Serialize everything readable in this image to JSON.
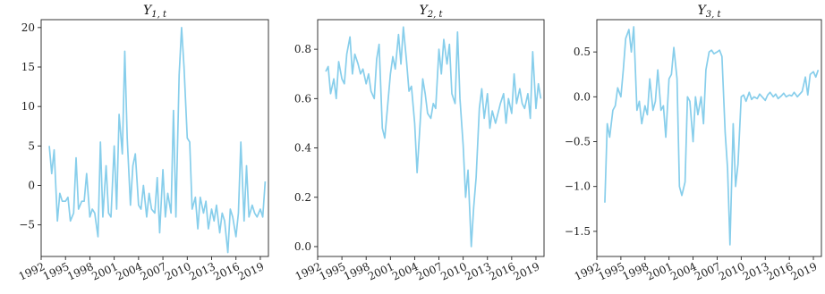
{
  "chart_data": [
    {
      "type": "line",
      "title": "Y",
      "title_sub": "1, t",
      "xticks": [
        "1992",
        "1995",
        "1998",
        "2001",
        "2004",
        "2007",
        "2010",
        "2013",
        "2016",
        "2019"
      ],
      "xrange": [
        1992,
        2020
      ],
      "yticks": [
        -5,
        0,
        5,
        10,
        15,
        20
      ],
      "ylim": [
        -9,
        21
      ],
      "color": "#87ceeb",
      "series": [
        {
          "x": [
            1993.0,
            1993.3,
            1993.6,
            1994.0,
            1994.3,
            1994.6,
            1995.0,
            1995.3,
            1995.6,
            1996.0,
            1996.3,
            1996.6,
            1997.0,
            1997.3,
            1997.6,
            1998.0,
            1998.3,
            1998.6,
            1999.0,
            1999.3,
            1999.6,
            2000.0,
            2000.3,
            2000.6,
            2001.0,
            2001.3,
            2001.6,
            2002.0,
            2002.3,
            2002.6,
            2003.0,
            2003.3,
            2003.6,
            2004.0,
            2004.3,
            2004.6,
            2005.0,
            2005.3,
            2005.6,
            2006.0,
            2006.3,
            2006.6,
            2007.0,
            2007.3,
            2007.6,
            2008.0,
            2008.3,
            2008.6,
            2009.0,
            2009.3,
            2009.6,
            2010.0,
            2010.3,
            2010.6,
            2011.0,
            2011.3,
            2011.6,
            2012.0,
            2012.3,
            2012.6,
            2013.0,
            2013.3,
            2013.6,
            2014.0,
            2014.3,
            2014.6,
            2015.0,
            2015.3,
            2015.6,
            2016.0,
            2016.3,
            2016.6,
            2017.0,
            2017.3,
            2017.6,
            2018.0,
            2018.3,
            2018.6,
            2019.0,
            2019.3,
            2019.6
          ],
          "y": [
            5,
            1.5,
            4.5,
            -4.5,
            -1.0,
            -2.0,
            -2.0,
            -1.5,
            -4.5,
            -3.5,
            3.5,
            -3.0,
            -2.0,
            -2.0,
            1.5,
            -4.0,
            -3.0,
            -3.5,
            -6.5,
            5.5,
            -4.0,
            2.5,
            -3.5,
            -4.0,
            5.0,
            -3.0,
            9.0,
            4.0,
            17.0,
            6.0,
            -2.5,
            2.5,
            4.0,
            -2.5,
            -3.0,
            0.0,
            -4.0,
            -1.0,
            -3.0,
            -3.5,
            1.0,
            -6.0,
            2.0,
            -4.0,
            -1.0,
            -3.5,
            9.5,
            -4.0,
            14.0,
            20.0,
            15.0,
            6.0,
            5.5,
            -3.0,
            -1.5,
            -5.5,
            -1.5,
            -3.5,
            -2.0,
            -5.5,
            -3.0,
            -4.5,
            -2.5,
            -6.0,
            -3.5,
            -4.5,
            -8.5,
            -3.0,
            -4.0,
            -6.5,
            -3.5,
            5.5,
            -4.5,
            2.5,
            -4.0,
            -2.5,
            -3.5,
            -4.0,
            -3.0,
            -4.0,
            0.5
          ]
        }
      ]
    },
    {
      "type": "line",
      "title": "Y",
      "title_sub": "2, t",
      "xticks": [
        "1992",
        "1995",
        "1998",
        "2001",
        "2004",
        "2007",
        "2010",
        "2013",
        "2016",
        "2019"
      ],
      "xrange": [
        1992,
        2020
      ],
      "yticks": [
        0.0,
        0.2,
        0.4,
        0.6,
        0.8
      ],
      "ylim": [
        -0.04,
        0.92
      ],
      "color": "#87ceeb",
      "series": [
        {
          "x": [
            1993.0,
            1993.3,
            1993.6,
            1994.0,
            1994.3,
            1994.6,
            1995.0,
            1995.3,
            1995.6,
            1996.0,
            1996.3,
            1996.6,
            1997.0,
            1997.3,
            1997.6,
            1998.0,
            1998.3,
            1998.6,
            1999.0,
            1999.3,
            1999.6,
            2000.0,
            2000.3,
            2000.6,
            2001.0,
            2001.3,
            2001.6,
            2002.0,
            2002.3,
            2002.6,
            2003.0,
            2003.3,
            2003.6,
            2004.0,
            2004.3,
            2004.6,
            2005.0,
            2005.3,
            2005.6,
            2006.0,
            2006.3,
            2006.6,
            2007.0,
            2007.3,
            2007.6,
            2008.0,
            2008.3,
            2008.6,
            2009.0,
            2009.3,
            2009.6,
            2010.0,
            2010.3,
            2010.6,
            2011.0,
            2011.3,
            2011.6,
            2012.0,
            2012.3,
            2012.6,
            2013.0,
            2013.3,
            2013.6,
            2014.0,
            2014.3,
            2014.6,
            2015.0,
            2015.3,
            2015.6,
            2016.0,
            2016.3,
            2016.6,
            2017.0,
            2017.3,
            2017.6,
            2018.0,
            2018.3,
            2018.6,
            2019.0,
            2019.3,
            2019.6
          ],
          "y": [
            0.71,
            0.73,
            0.62,
            0.68,
            0.6,
            0.75,
            0.68,
            0.66,
            0.78,
            0.85,
            0.7,
            0.78,
            0.74,
            0.7,
            0.72,
            0.66,
            0.7,
            0.63,
            0.6,
            0.76,
            0.82,
            0.48,
            0.44,
            0.55,
            0.7,
            0.77,
            0.72,
            0.86,
            0.74,
            0.89,
            0.75,
            0.63,
            0.65,
            0.5,
            0.3,
            0.46,
            0.68,
            0.62,
            0.54,
            0.52,
            0.58,
            0.56,
            0.8,
            0.7,
            0.84,
            0.74,
            0.82,
            0.62,
            0.58,
            0.87,
            0.6,
            0.41,
            0.2,
            0.31,
            0.0,
            0.16,
            0.28,
            0.56,
            0.64,
            0.52,
            0.62,
            0.48,
            0.55,
            0.5,
            0.54,
            0.58,
            0.62,
            0.5,
            0.6,
            0.54,
            0.7,
            0.58,
            0.64,
            0.58,
            0.56,
            0.62,
            0.52,
            0.79,
            0.56,
            0.66,
            0.6
          ]
        }
      ]
    },
    {
      "type": "line",
      "title": "Y",
      "title_sub": "3, t",
      "xticks": [
        "1992",
        "1995",
        "1998",
        "2001",
        "2004",
        "2007",
        "2010",
        "2013",
        "2016",
        "2019"
      ],
      "xrange": [
        1992,
        2020
      ],
      "yticks": [
        -1.5,
        -1.0,
        -0.5,
        0.0,
        0.5
      ],
      "ylim": [
        -1.78,
        0.86
      ],
      "color": "#87ceeb",
      "series": [
        {
          "x": [
            1993.0,
            1993.3,
            1993.6,
            1994.0,
            1994.3,
            1994.6,
            1995.0,
            1995.3,
            1995.6,
            1996.0,
            1996.3,
            1996.6,
            1997.0,
            1997.3,
            1997.6,
            1998.0,
            1998.3,
            1998.6,
            1999.0,
            1999.3,
            1999.6,
            2000.0,
            2000.3,
            2000.6,
            2001.0,
            2001.3,
            2001.6,
            2002.0,
            2002.3,
            2002.6,
            2003.0,
            2003.3,
            2003.6,
            2004.0,
            2004.3,
            2004.6,
            2005.0,
            2005.3,
            2005.6,
            2006.0,
            2006.3,
            2006.6,
            2007.0,
            2007.3,
            2007.6,
            2008.0,
            2008.3,
            2008.6,
            2009.0,
            2009.3,
            2009.6,
            2010.0,
            2010.3,
            2010.6,
            2011.0,
            2011.3,
            2011.6,
            2012.0,
            2012.3,
            2012.6,
            2013.0,
            2013.3,
            2013.6,
            2014.0,
            2014.3,
            2014.6,
            2015.0,
            2015.3,
            2015.6,
            2016.0,
            2016.3,
            2016.6,
            2017.0,
            2017.3,
            2017.6,
            2018.0,
            2018.3,
            2018.6,
            2019.0,
            2019.3,
            2019.6
          ],
          "y": [
            -1.18,
            -0.3,
            -0.45,
            -0.15,
            -0.1,
            0.1,
            0.0,
            0.3,
            0.65,
            0.75,
            0.5,
            0.78,
            -0.15,
            -0.05,
            -0.3,
            -0.1,
            -0.2,
            0.2,
            -0.15,
            -0.05,
            0.3,
            -0.15,
            -0.1,
            -0.45,
            0.2,
            0.25,
            0.55,
            0.2,
            -1.0,
            -1.1,
            -0.95,
            0.0,
            -0.05,
            -0.5,
            0.0,
            -0.2,
            0.0,
            -0.3,
            0.3,
            0.5,
            0.52,
            0.48,
            0.5,
            0.52,
            0.45,
            -0.4,
            -0.8,
            -1.65,
            -0.3,
            -1.0,
            -0.75,
            0.0,
            0.02,
            -0.05,
            0.05,
            -0.03,
            0.0,
            -0.02,
            0.03,
            0.0,
            -0.04,
            0.02,
            0.05,
            0.0,
            0.03,
            -0.02,
            0.01,
            0.04,
            0.0,
            0.02,
            0.01,
            0.05,
            0.0,
            0.03,
            0.06,
            0.22,
            0.02,
            0.25,
            0.28,
            0.22,
            0.3
          ]
        }
      ]
    }
  ]
}
